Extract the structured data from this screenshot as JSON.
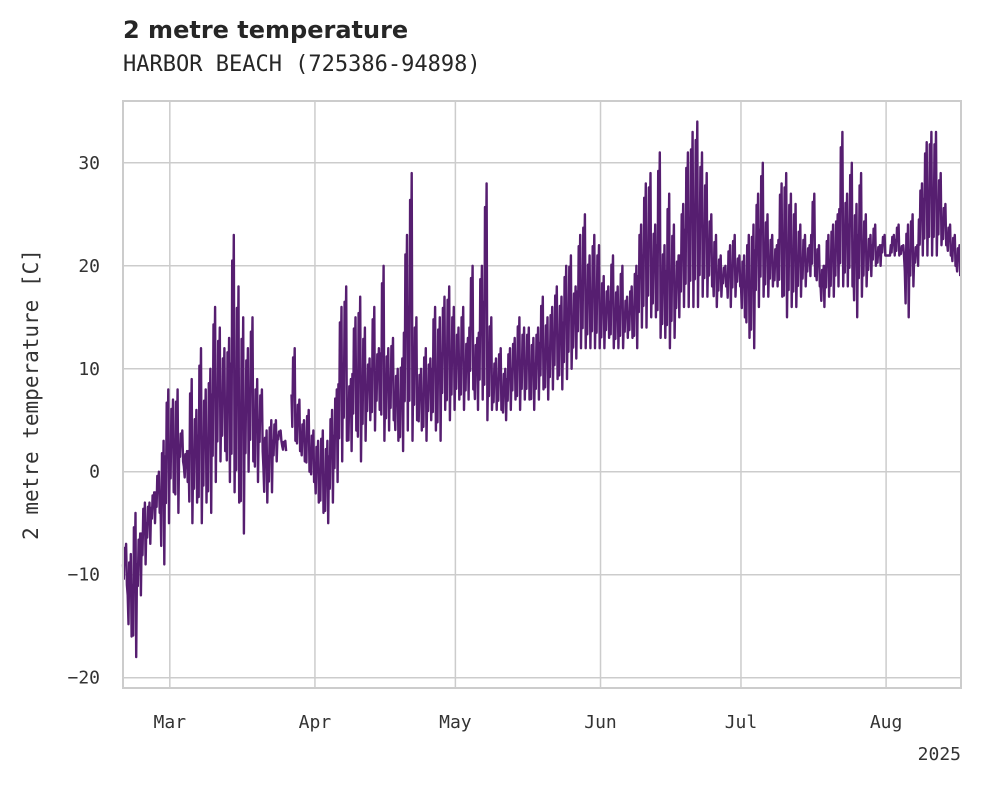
{
  "chart_data": {
    "type": "line",
    "title": "2 metre temperature",
    "subtitle": "HARBOR BEACH (725386-94898)",
    "xlabel": "",
    "ylabel": "2 metre temperature [C]",
    "xlim": [
      "2025-02-19",
      "2025-08-17"
    ],
    "ylim": [
      -21,
      36
    ],
    "x_ticks": [
      "2025-03-01",
      "2025-04-01",
      "2025-05-01",
      "2025-06-01",
      "2025-07-01",
      "2025-08-01"
    ],
    "x_tick_labels": [
      "Mar",
      "Apr",
      "May",
      "Jun",
      "Jul",
      "Aug"
    ],
    "x_offset_label": "2025",
    "y_ticks": [
      -20,
      -10,
      0,
      10,
      20,
      30
    ],
    "y_tick_labels": [
      "−20",
      "−10",
      "0",
      "10",
      "20",
      "30"
    ],
    "grid": true,
    "legend": "none",
    "color": "#561e70",
    "series": [
      {
        "name": "",
        "x": [
          "2025-02-19",
          "2025-02-20",
          "2025-02-21",
          "2025-02-22",
          "2025-02-23",
          "2025-02-24",
          "2025-02-25",
          "2025-02-26",
          "2025-02-27",
          "2025-02-28",
          "2025-03-01",
          "2025-03-02",
          "2025-03-03",
          "2025-03-04",
          "2025-03-05",
          "2025-03-06",
          "2025-03-07",
          "2025-03-08",
          "2025-03-09",
          "2025-03-10",
          "2025-03-11",
          "2025-03-12",
          "2025-03-13",
          "2025-03-14",
          "2025-03-15",
          "2025-03-16",
          "2025-03-17",
          "2025-03-18",
          "2025-03-19",
          "2025-03-20",
          "2025-03-21",
          "2025-03-22",
          "2025-03-23",
          "2025-03-24",
          "2025-03-25",
          "2025-03-26",
          "2025-03-27",
          "2025-03-28",
          "2025-03-29",
          "2025-03-30",
          "2025-03-31",
          "2025-04-01",
          "2025-04-02",
          "2025-04-03",
          "2025-04-04",
          "2025-04-05",
          "2025-04-06",
          "2025-04-07",
          "2025-04-08",
          "2025-04-09",
          "2025-04-10",
          "2025-04-11",
          "2025-04-12",
          "2025-04-13",
          "2025-04-14",
          "2025-04-15",
          "2025-04-16",
          "2025-04-17",
          "2025-04-18",
          "2025-04-19",
          "2025-04-20",
          "2025-04-21",
          "2025-04-22",
          "2025-04-23",
          "2025-04-24",
          "2025-04-25",
          "2025-04-26",
          "2025-04-27",
          "2025-04-28",
          "2025-04-29",
          "2025-04-30",
          "2025-05-01",
          "2025-05-02",
          "2025-05-03",
          "2025-05-04",
          "2025-05-05",
          "2025-05-06",
          "2025-05-07",
          "2025-05-08",
          "2025-05-09",
          "2025-05-10",
          "2025-05-11",
          "2025-05-12",
          "2025-05-13",
          "2025-05-14",
          "2025-05-15",
          "2025-05-16",
          "2025-05-17",
          "2025-05-18",
          "2025-05-19",
          "2025-05-20",
          "2025-05-21",
          "2025-05-22",
          "2025-05-23",
          "2025-05-24",
          "2025-05-25",
          "2025-05-26",
          "2025-05-27",
          "2025-05-28",
          "2025-05-29",
          "2025-05-30",
          "2025-05-31",
          "2025-06-01",
          "2025-06-02",
          "2025-06-03",
          "2025-06-04",
          "2025-06-05",
          "2025-06-06",
          "2025-06-07",
          "2025-06-08",
          "2025-06-09",
          "2025-06-10",
          "2025-06-11",
          "2025-06-12",
          "2025-06-13",
          "2025-06-14",
          "2025-06-15",
          "2025-06-16",
          "2025-06-17",
          "2025-06-18",
          "2025-06-19",
          "2025-06-20",
          "2025-06-21",
          "2025-06-22",
          "2025-06-23",
          "2025-06-24",
          "2025-06-25",
          "2025-06-26",
          "2025-06-27",
          "2025-06-28",
          "2025-06-29",
          "2025-06-30",
          "2025-07-01",
          "2025-07-02",
          "2025-07-03",
          "2025-07-04",
          "2025-07-05",
          "2025-07-06",
          "2025-07-07",
          "2025-07-08",
          "2025-07-09",
          "2025-07-10",
          "2025-07-11",
          "2025-07-12",
          "2025-07-13",
          "2025-07-14",
          "2025-07-15",
          "2025-07-16",
          "2025-07-17",
          "2025-07-18",
          "2025-07-19",
          "2025-07-20",
          "2025-07-21",
          "2025-07-22",
          "2025-07-23",
          "2025-07-24",
          "2025-07-25",
          "2025-07-26",
          "2025-07-27",
          "2025-07-28",
          "2025-07-29",
          "2025-07-30",
          "2025-07-31",
          "2025-08-01",
          "2025-08-02",
          "2025-08-03",
          "2025-08-04",
          "2025-08-05",
          "2025-08-06",
          "2025-08-07",
          "2025-08-08",
          "2025-08-09",
          "2025-08-10",
          "2025-08-11",
          "2025-08-12",
          "2025-08-13",
          "2025-08-14",
          "2025-08-15",
          "2025-08-16"
        ],
        "min": [
          -11,
          -16,
          -18,
          -12,
          -9,
          -7,
          -5,
          -4,
          -9,
          -5,
          -2,
          -4,
          1,
          -1,
          -5,
          -3,
          -5,
          -3,
          -4,
          -1,
          1,
          2,
          -1,
          -2,
          -3,
          -6,
          0,
          1,
          -1,
          2,
          -3,
          -2,
          1,
          3,
          2,
          null,
          3,
          2,
          1,
          0,
          -1,
          -3,
          -4,
          -5,
          -3,
          -1,
          1,
          3,
          2,
          4,
          1,
          3,
          5,
          4,
          6,
          3,
          4,
          5,
          3,
          2,
          4,
          3,
          5,
          4,
          3,
          5,
          4,
          3,
          6,
          5,
          6,
          7,
          6,
          7,
          8,
          6,
          7,
          5,
          6,
          6,
          6,
          5,
          6,
          7,
          6,
          7,
          7,
          6,
          7,
          8,
          7,
          8,
          9,
          8,
          9,
          10,
          11,
          12,
          12,
          12,
          12,
          12,
          12,
          13,
          12,
          12,
          12,
          13,
          13,
          12,
          14,
          14,
          15,
          15,
          13,
          13,
          12,
          13,
          15,
          16,
          16,
          16,
          16,
          17,
          17,
          18,
          16,
          17,
          18,
          16,
          17,
          18,
          15,
          13,
          12,
          16,
          17,
          17,
          18,
          18,
          17,
          15,
          16,
          16,
          17,
          18,
          19,
          19,
          18,
          16,
          17,
          17,
          18,
          18,
          18,
          18,
          15,
          17,
          18,
          19,
          20,
          20,
          21,
          21,
          21,
          21,
          21,
          15,
          18,
          20,
          21,
          21,
          21,
          21,
          22,
          22,
          21,
          20,
          19
        ],
        "max": [
          -7,
          -8,
          -4,
          -6,
          -3,
          -3,
          -2,
          0,
          3,
          8,
          7,
          8,
          4,
          2,
          9,
          6,
          12,
          8,
          10,
          16,
          14,
          12,
          13,
          23,
          18,
          15,
          12,
          15,
          9,
          8,
          4,
          5,
          5,
          4,
          3,
          null,
          12,
          7,
          5,
          6,
          4,
          3,
          4,
          3,
          6,
          8,
          16,
          18,
          9,
          15,
          17,
          14,
          11,
          16,
          12,
          20,
          12,
          13,
          10,
          11,
          23,
          29,
          15,
          10,
          12,
          11,
          16,
          15,
          17,
          18,
          16,
          14,
          16,
          13,
          20,
          13,
          20,
          28,
          15,
          11,
          12,
          10,
          12,
          13,
          15,
          14,
          14,
          13,
          14,
          17,
          15,
          16,
          18,
          17,
          20,
          21,
          18,
          23,
          25,
          21,
          23,
          22,
          19,
          18,
          21,
          18,
          20,
          17,
          18,
          20,
          24,
          28,
          29,
          24,
          31,
          22,
          27,
          24,
          21,
          26,
          31,
          33,
          34,
          31,
          29,
          25,
          23,
          21,
          20,
          22,
          23,
          21,
          21,
          23,
          24,
          27,
          30,
          25,
          23,
          22,
          28,
          29,
          27,
          26,
          24,
          23,
          22,
          27,
          22,
          20,
          23,
          24,
          25,
          33,
          27,
          30,
          26,
          29,
          25,
          23,
          24,
          22,
          23,
          21,
          23,
          24,
          22,
          24,
          25,
          22,
          28,
          32,
          33,
          33,
          29,
          26,
          24,
          23,
          22
        ]
      }
    ]
  }
}
